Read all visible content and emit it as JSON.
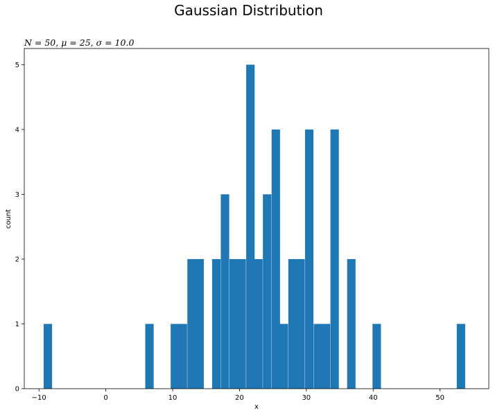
{
  "chart_data": {
    "type": "bar",
    "title": "Gaussian Distribution",
    "subtitle": "N = 50, μ = 25, σ = 10.0",
    "xlabel": "x",
    "ylabel": "count",
    "xlim": [
      -12.2,
      57.3
    ],
    "ylim": [
      0,
      5.25
    ],
    "x_ticks": [
      -10,
      0,
      10,
      20,
      30,
      40,
      50
    ],
    "y_ticks": [
      0,
      1,
      2,
      3,
      4,
      5
    ],
    "bin_width": 1.26,
    "grid": false,
    "bar_color": "#1f77b4",
    "bins": [
      {
        "x0": -9.3,
        "count": 1
      },
      {
        "x0": 5.9,
        "count": 1
      },
      {
        "x0": 9.7,
        "count": 1
      },
      {
        "x0": 10.9,
        "count": 1
      },
      {
        "x0": 12.2,
        "count": 2
      },
      {
        "x0": 13.4,
        "count": 2
      },
      {
        "x0": 15.9,
        "count": 2
      },
      {
        "x0": 17.2,
        "count": 3
      },
      {
        "x0": 18.5,
        "count": 2
      },
      {
        "x0": 19.7,
        "count": 2
      },
      {
        "x0": 21.0,
        "count": 5
      },
      {
        "x0": 22.2,
        "count": 2
      },
      {
        "x0": 23.5,
        "count": 3
      },
      {
        "x0": 24.8,
        "count": 4
      },
      {
        "x0": 26.0,
        "count": 1
      },
      {
        "x0": 27.3,
        "count": 2
      },
      {
        "x0": 28.5,
        "count": 2
      },
      {
        "x0": 29.8,
        "count": 4
      },
      {
        "x0": 31.1,
        "count": 1
      },
      {
        "x0": 32.3,
        "count": 1
      },
      {
        "x0": 33.6,
        "count": 4
      },
      {
        "x0": 36.1,
        "count": 2
      },
      {
        "x0": 39.9,
        "count": 1
      },
      {
        "x0": 52.5,
        "count": 1
      }
    ]
  }
}
